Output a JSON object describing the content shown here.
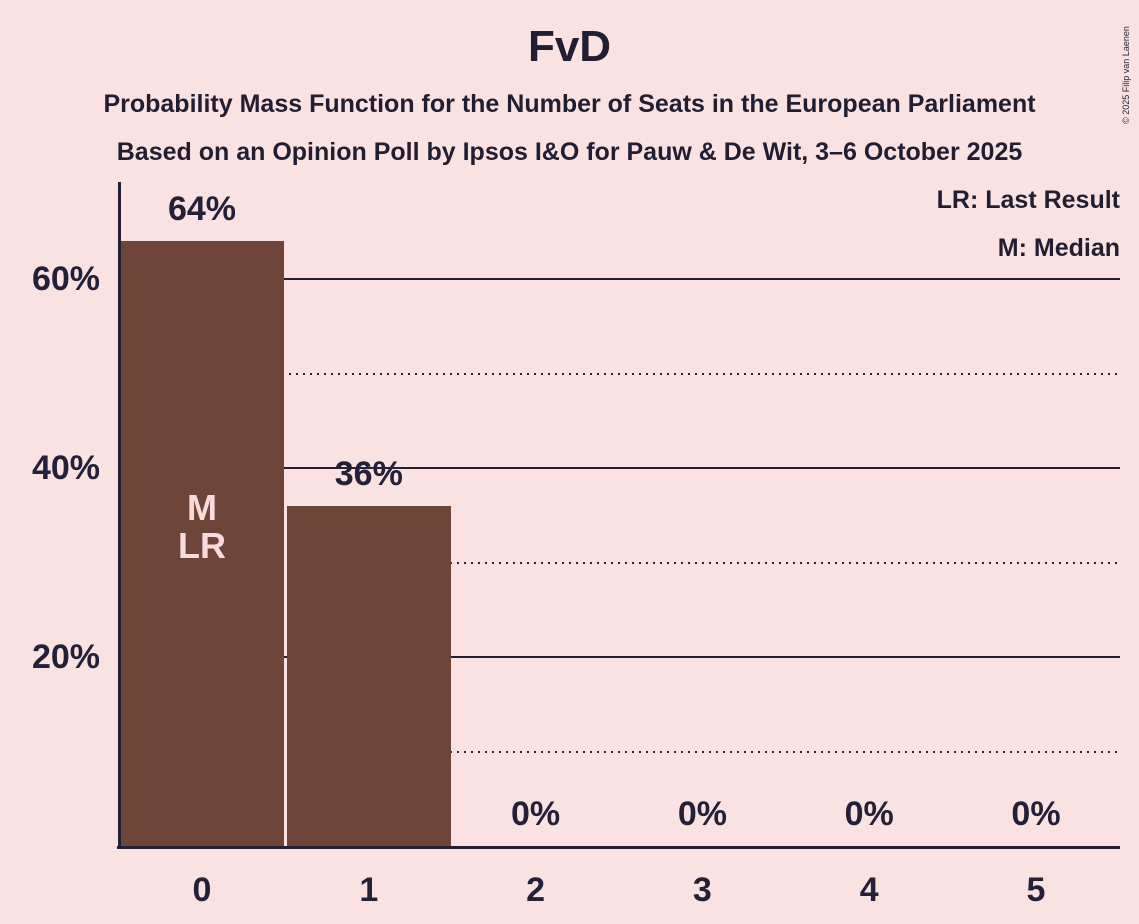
{
  "header": {
    "title": "FvD",
    "subtitle1": "Probability Mass Function for the Number of Seats in the European Parliament",
    "subtitle2": "Based on an Opinion Poll by Ipsos I&O for Pauw & De Wit, 3–6 October 2025"
  },
  "legend": {
    "last_result": "LR: Last Result",
    "median": "M: Median"
  },
  "copyright": "© 2025 Filip van Laenen",
  "colors": {
    "background": "#FAE2E3",
    "bar": "#6E4539",
    "text": "#242038",
    "bar_annotation_text": "#F8DCDC"
  },
  "chart_data": {
    "type": "bar",
    "title": "FvD",
    "categories": [
      "0",
      "1",
      "2",
      "3",
      "4",
      "5"
    ],
    "values": [
      64,
      36,
      0,
      0,
      0,
      0
    ],
    "value_labels": [
      "64%",
      "36%",
      "0%",
      "0%",
      "0%",
      "0%"
    ],
    "ylim": [
      0,
      70
    ],
    "grid": "horizontal",
    "legend_position": "top-right",
    "yticks": [
      {
        "pct": 10,
        "style": "dotted",
        "label": ""
      },
      {
        "pct": 20,
        "style": "solid",
        "label": "20%"
      },
      {
        "pct": 30,
        "style": "dotted",
        "label": ""
      },
      {
        "pct": 40,
        "style": "solid",
        "label": "40%"
      },
      {
        "pct": 50,
        "style": "dotted",
        "label": ""
      },
      {
        "pct": 60,
        "style": "solid",
        "label": "60%"
      }
    ],
    "bar_annotations": [
      {
        "category_index": 0,
        "lines": [
          "M",
          "LR"
        ]
      }
    ]
  }
}
